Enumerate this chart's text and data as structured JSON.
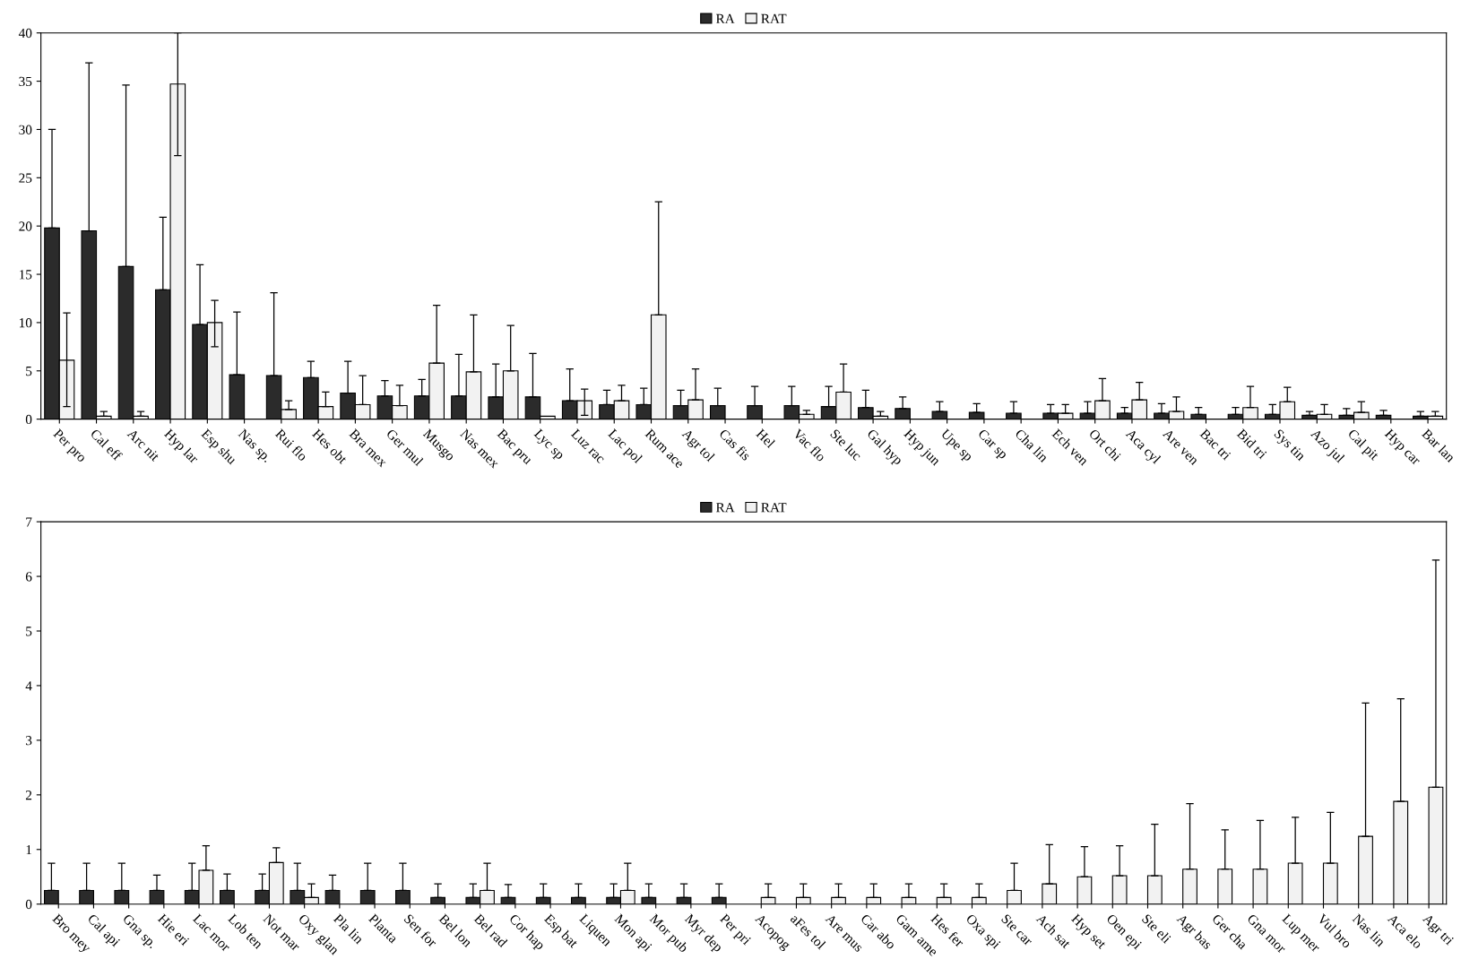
{
  "chart_data": [
    {
      "type": "bar",
      "legend": "top",
      "grid": false,
      "ylim": [
        0,
        40
      ],
      "yticks": [
        0,
        5,
        10,
        15,
        20,
        25,
        30,
        35,
        40
      ],
      "categories": [
        "Per pro",
        "Cal eff",
        "Arc nit",
        "Hyp lar",
        "Esp shu",
        "Nas sp.",
        "Rui flo",
        "Hes obt",
        "Bra mex",
        "Ger mul",
        "Musgo",
        "Nas mex",
        "Bac pru",
        "Lyc sp",
        "Luz rac",
        "Lac pol",
        "Rum ace",
        "Agr tol",
        "Cas fis",
        "Hel",
        "Vac flo",
        "Ste luc",
        "Gal hyp",
        "Hyp jun",
        "Upe sp",
        "Car sp",
        "Cha lin",
        "Ech ven",
        "Ort chi",
        "Aca cyl",
        "Are ven",
        "Bac tri",
        "Bid tri",
        "Sys tin",
        "Azo jul",
        "Cal pit",
        "Hyp car",
        "Bar lan"
      ],
      "series": [
        {
          "name": "RA",
          "color": "#2b2b2b",
          "values": [
            19.8,
            19.5,
            15.8,
            13.4,
            9.8,
            4.6,
            4.5,
            4.3,
            2.7,
            2.4,
            2.4,
            2.4,
            2.3,
            2.3,
            1.9,
            1.5,
            1.5,
            1.4,
            1.4,
            1.4,
            1.4,
            1.3,
            1.2,
            1.1,
            0.8,
            0.7,
            0.6,
            0.6,
            0.6,
            0.6,
            0.6,
            0.5,
            0.5,
            0.5,
            0.4,
            0.4,
            0.4,
            0.3
          ],
          "errors": [
            [
              19.8,
              30
            ],
            [
              19.5,
              36.9
            ],
            [
              15.8,
              34.6
            ],
            [
              13.4,
              20.9
            ],
            [
              9.8,
              16
            ],
            [
              4.6,
              11.1
            ],
            [
              4.5,
              13.1
            ],
            [
              4.3,
              6
            ],
            [
              2.7,
              6
            ],
            [
              2.4,
              4
            ],
            [
              2.4,
              4.1
            ],
            [
              2.4,
              6.7
            ],
            [
              2.3,
              5.7
            ],
            [
              2.3,
              6.8
            ],
            [
              1.9,
              5.2
            ],
            [
              1.5,
              3
            ],
            [
              1.5,
              3.2
            ],
            [
              1.4,
              3
            ],
            [
              1.4,
              3.2
            ],
            [
              1.4,
              3.4
            ],
            [
              1.4,
              3.4
            ],
            [
              1.3,
              3.4
            ],
            [
              1.2,
              3
            ],
            [
              1.1,
              2.3
            ],
            [
              0.8,
              1.8
            ],
            [
              0.7,
              1.6
            ],
            [
              0.6,
              1.8
            ],
            [
              0.6,
              1.5
            ],
            [
              0.6,
              1.8
            ],
            [
              0.6,
              1.2
            ],
            [
              0.6,
              1.6
            ],
            [
              0.5,
              1.2
            ],
            [
              0.5,
              1.2
            ],
            [
              0.5,
              1.5
            ],
            [
              0.4,
              0.8
            ],
            [
              0.4,
              1.1
            ],
            [
              0.4,
              0.9
            ],
            [
              0.3,
              0.8
            ]
          ]
        },
        {
          "name": "RAT",
          "color": "#f2f2f2",
          "values": [
            6.1,
            0.3,
            0.3,
            34.7,
            10,
            0,
            1,
            1.3,
            1.5,
            1.4,
            5.8,
            4.9,
            5,
            0.3,
            1.9,
            1.9,
            10.8,
            2,
            0,
            0,
            0.5,
            2.8,
            0.3,
            0,
            0,
            0,
            0,
            0.6,
            1.9,
            2,
            0.8,
            0,
            1.2,
            1.8,
            0.5,
            0.7,
            0,
            0.3
          ],
          "errors": [
            [
              1.3,
              11
            ],
            [
              0.3,
              0.8
            ],
            [
              0.3,
              0.8
            ],
            [
              27.3,
              40
            ],
            [
              7.5,
              12.3
            ],
            null,
            [
              1,
              1.9
            ],
            [
              1.3,
              2.8
            ],
            [
              1.5,
              4.5
            ],
            [
              1.4,
              3.5
            ],
            [
              5.8,
              11.8
            ],
            [
              4.9,
              10.8
            ],
            [
              5,
              9.7
            ],
            null,
            [
              0.4,
              3.1
            ],
            [
              1.9,
              3.5
            ],
            [
              10.8,
              22.5
            ],
            [
              2,
              5.2
            ],
            null,
            null,
            [
              0.5,
              0.9
            ],
            [
              2.8,
              5.7
            ],
            [
              0.3,
              0.8
            ],
            null,
            null,
            null,
            null,
            [
              0.6,
              1.5
            ],
            [
              1.9,
              4.2
            ],
            [
              2,
              3.8
            ],
            [
              0.8,
              2.3
            ],
            null,
            [
              1.2,
              3.4
            ],
            [
              1.8,
              3.3
            ],
            [
              0.5,
              1.5
            ],
            [
              0.7,
              1.8
            ],
            null,
            [
              0.3,
              0.8
            ]
          ]
        }
      ]
    },
    {
      "type": "bar",
      "legend": "top",
      "grid": false,
      "ylim": [
        0,
        7
      ],
      "yticks": [
        0,
        1,
        2,
        3,
        4,
        5,
        6,
        7
      ],
      "categories": [
        "Bro mey",
        "Cal api",
        "Gna sp.",
        "Hie eri",
        "Lac mor",
        "Lob ten",
        "Not mar",
        "Oxy glan",
        "Pla lin",
        "Planta",
        "Sen for",
        "Bel lon",
        "Bel rad",
        "Cor hap",
        "Esp bat",
        "Liquen",
        "Mon api",
        "Mor pub",
        "Myr dep",
        "Per pri",
        "Acopog",
        "aFes tol",
        "Are mus",
        "Car abo",
        "Gam ame",
        "Hes fer",
        "Oxa spi",
        "Ste car",
        "Ach sat",
        "Hyp set",
        "Oen epi",
        "Ste eli",
        "Agr bas",
        "Ger cha",
        "Gna mor",
        "Lup mer",
        "Vul bro",
        "Nas lin",
        "Aca elo",
        "Agr tri"
      ],
      "series": [
        {
          "name": "RA",
          "color": "#2b2b2b",
          "values": [
            0.25,
            0.25,
            0.25,
            0.25,
            0.25,
            0.25,
            0.25,
            0.25,
            0.25,
            0.25,
            0.25,
            0.12,
            0.12,
            0.12,
            0.12,
            0.12,
            0.12,
            0.12,
            0.12,
            0.12,
            0,
            0,
            0,
            0,
            0,
            0,
            0,
            0,
            0,
            0,
            0,
            0,
            0,
            0,
            0,
            0,
            0,
            0,
            0,
            0
          ],
          "errors": [
            [
              0.25,
              0.75
            ],
            [
              0.25,
              0.75
            ],
            [
              0.25,
              0.75
            ],
            [
              0.25,
              0.53
            ],
            [
              0.25,
              0.75
            ],
            [
              0.25,
              0.55
            ],
            [
              0.25,
              0.55
            ],
            [
              0.25,
              0.75
            ],
            [
              0.25,
              0.53
            ],
            [
              0.25,
              0.75
            ],
            [
              0.25,
              0.75
            ],
            [
              0.12,
              0.37
            ],
            [
              0.12,
              0.37
            ],
            [
              0.12,
              0.36
            ],
            [
              0.12,
              0.37
            ],
            [
              0.12,
              0.37
            ],
            [
              0.12,
              0.37
            ],
            [
              0.12,
              0.37
            ],
            [
              0.12,
              0.37
            ],
            [
              0.12,
              0.37
            ],
            null,
            null,
            null,
            null,
            null,
            null,
            null,
            null,
            null,
            null,
            null,
            null,
            null,
            null,
            null,
            null,
            null,
            null,
            null,
            null
          ]
        },
        {
          "name": "RAT",
          "color": "#f2f2f2",
          "values": [
            0,
            0,
            0,
            0,
            0.62,
            0,
            0.76,
            0.12,
            0,
            0,
            0,
            0,
            0.25,
            0,
            0,
            0,
            0.25,
            0,
            0,
            0,
            0.12,
            0.12,
            0.12,
            0.12,
            0.12,
            0.12,
            0.12,
            0.25,
            0.37,
            0.5,
            0.52,
            0.52,
            0.64,
            0.64,
            0.64,
            0.75,
            0.75,
            1.24,
            1.88,
            2.14
          ],
          "errors": [
            null,
            null,
            null,
            null,
            [
              0.62,
              1.07
            ],
            null,
            [
              0.76,
              1.03
            ],
            [
              0.12,
              0.37
            ],
            null,
            null,
            null,
            null,
            [
              0.25,
              0.75
            ],
            null,
            null,
            null,
            [
              0.25,
              0.75
            ],
            null,
            null,
            null,
            [
              0.12,
              0.37
            ],
            [
              0.12,
              0.37
            ],
            [
              0.12,
              0.37
            ],
            [
              0.12,
              0.37
            ],
            [
              0.12,
              0.37
            ],
            [
              0.12,
              0.37
            ],
            [
              0.12,
              0.37
            ],
            [
              0.25,
              0.75
            ],
            [
              0.37,
              1.09
            ],
            [
              0.5,
              1.05
            ],
            [
              0.52,
              1.07
            ],
            [
              0.52,
              1.46
            ],
            [
              0.64,
              1.84
            ],
            [
              0.64,
              1.36
            ],
            [
              0.64,
              1.53
            ],
            [
              0.75,
              1.59
            ],
            [
              0.75,
              1.68
            ],
            [
              1.24,
              3.68
            ],
            [
              1.88,
              3.76
            ],
            [
              2.14,
              6.3
            ]
          ]
        }
      ]
    }
  ]
}
